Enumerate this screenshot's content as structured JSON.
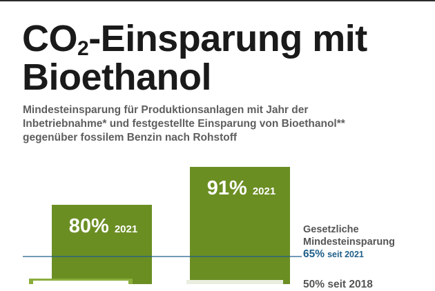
{
  "header": {
    "title_main": "CO",
    "title_sub": "2",
    "title_rest": "-Einsparung mit",
    "title_line2": "Bioethanol",
    "subtitle_1": "Mindesteinsparung für Produktionsanlagen mit Jahr der",
    "subtitle_2": "Inbetriebnahme* und festgestellte Einsparung von Bioethanol**",
    "subtitle_3": "gegenüber fossilem Benzin nach Rohstoff"
  },
  "chart_data": {
    "type": "bar",
    "categories": [
      "",
      ""
    ],
    "series": [
      {
        "values": [
          80,
          91
        ],
        "labels": [
          "80%",
          "91%"
        ],
        "years": [
          "2021",
          "2021"
        ]
      }
    ],
    "reference_lines": [
      {
        "label_1": "Gesetzliche",
        "label_2": "Mindesteinsparung",
        "value": 65,
        "value_text": "65%",
        "since": "seit 2021"
      },
      {
        "value": 50,
        "value_text": "50%",
        "since": "seit 2018"
      }
    ],
    "colors": {
      "bar": "#6b8e23",
      "reference_line": "#1f5f8a",
      "lower_bar": "#8aad3c"
    }
  }
}
